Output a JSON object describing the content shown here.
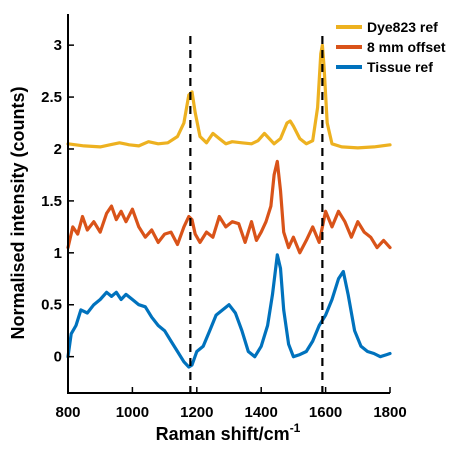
{
  "chart_data": {
    "type": "line",
    "xlabel": "Raman shift/cm",
    "xlabel_sup": "-1",
    "ylabel": "Normalised intensity (counts)",
    "xlim": [
      800,
      1800
    ],
    "ylim": [
      -0.35,
      3.3
    ],
    "xticks": [
      800,
      1000,
      1200,
      1400,
      1600,
      1800
    ],
    "yticks": [
      0,
      0.5,
      1,
      1.5,
      2,
      2.5,
      3
    ],
    "ytick_labels": [
      "0",
      "0.5",
      "1",
      "1.5",
      "2",
      "2.5",
      "3"
    ],
    "grid": false,
    "legend_position": "top-right",
    "vlines": [
      1180,
      1590
    ],
    "series": [
      {
        "name": "Dye823 ref",
        "color": "#EDB120",
        "x": [
          800,
          850,
          900,
          930,
          960,
          990,
          1020,
          1050,
          1080,
          1110,
          1140,
          1160,
          1175,
          1185,
          1195,
          1210,
          1230,
          1250,
          1270,
          1290,
          1310,
          1340,
          1370,
          1390,
          1410,
          1425,
          1440,
          1460,
          1480,
          1490,
          1500,
          1520,
          1540,
          1560,
          1575,
          1585,
          1590,
          1595,
          1605,
          1620,
          1650,
          1700,
          1750,
          1800
        ],
        "y": [
          2.05,
          2.03,
          2.02,
          2.04,
          2.06,
          2.04,
          2.03,
          2.07,
          2.05,
          2.06,
          2.12,
          2.25,
          2.52,
          2.55,
          2.35,
          2.12,
          2.06,
          2.15,
          2.1,
          2.05,
          2.07,
          2.06,
          2.05,
          2.08,
          2.15,
          2.1,
          2.05,
          2.1,
          2.25,
          2.27,
          2.22,
          2.1,
          2.05,
          2.08,
          2.4,
          2.92,
          3.0,
          2.8,
          2.25,
          2.05,
          2.02,
          2.01,
          2.02,
          2.04
        ]
      },
      {
        "name": "8 mm offset",
        "color": "#D95319",
        "x": [
          800,
          815,
          830,
          845,
          860,
          880,
          900,
          920,
          935,
          950,
          965,
          980,
          1000,
          1020,
          1040,
          1060,
          1080,
          1100,
          1120,
          1140,
          1160,
          1175,
          1185,
          1195,
          1210,
          1230,
          1250,
          1270,
          1290,
          1310,
          1330,
          1350,
          1370,
          1385,
          1400,
          1415,
          1430,
          1440,
          1450,
          1460,
          1470,
          1485,
          1500,
          1520,
          1540,
          1560,
          1580,
          1600,
          1620,
          1640,
          1660,
          1680,
          1700,
          1720,
          1740,
          1760,
          1780,
          1800
        ],
        "y": [
          1.05,
          1.25,
          1.18,
          1.35,
          1.22,
          1.3,
          1.2,
          1.38,
          1.45,
          1.32,
          1.4,
          1.3,
          1.42,
          1.25,
          1.15,
          1.22,
          1.1,
          1.18,
          1.2,
          1.08,
          1.25,
          1.35,
          1.32,
          1.18,
          1.1,
          1.2,
          1.15,
          1.35,
          1.25,
          1.3,
          1.28,
          1.1,
          1.3,
          1.12,
          1.2,
          1.3,
          1.45,
          1.75,
          1.88,
          1.6,
          1.2,
          1.05,
          1.15,
          1.0,
          1.12,
          1.25,
          1.1,
          1.4,
          1.25,
          1.4,
          1.3,
          1.15,
          1.3,
          1.2,
          1.15,
          1.05,
          1.12,
          1.05
        ]
      },
      {
        "name": "Tissue ref",
        "color": "#0072BD",
        "x": [
          800,
          810,
          825,
          840,
          860,
          880,
          900,
          920,
          935,
          950,
          965,
          980,
          1000,
          1020,
          1040,
          1060,
          1080,
          1100,
          1120,
          1140,
          1160,
          1175,
          1185,
          1200,
          1220,
          1240,
          1260,
          1280,
          1300,
          1320,
          1340,
          1360,
          1380,
          1400,
          1420,
          1435,
          1450,
          1460,
          1470,
          1485,
          1500,
          1520,
          1540,
          1560,
          1580,
          1600,
          1620,
          1640,
          1655,
          1670,
          1690,
          1710,
          1730,
          1750,
          1770,
          1790,
          1800
        ],
        "y": [
          0.0,
          0.22,
          0.3,
          0.45,
          0.42,
          0.5,
          0.55,
          0.62,
          0.58,
          0.62,
          0.55,
          0.6,
          0.55,
          0.5,
          0.48,
          0.38,
          0.3,
          0.25,
          0.15,
          0.05,
          -0.05,
          -0.1,
          -0.08,
          0.05,
          0.1,
          0.25,
          0.4,
          0.45,
          0.5,
          0.42,
          0.25,
          0.05,
          0.0,
          0.1,
          0.3,
          0.6,
          0.98,
          0.85,
          0.45,
          0.12,
          0.0,
          0.02,
          0.05,
          0.15,
          0.3,
          0.4,
          0.55,
          0.75,
          0.82,
          0.6,
          0.25,
          0.1,
          0.05,
          0.03,
          0.0,
          0.02,
          0.03
        ]
      }
    ]
  }
}
